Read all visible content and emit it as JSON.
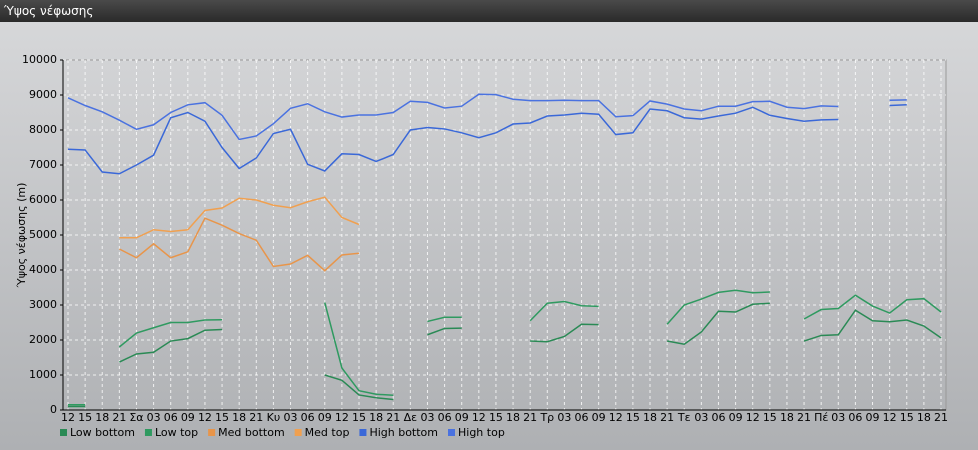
{
  "chart_data": {
    "type": "line",
    "title": "Ύψος νέφωσης",
    "ylabel": "Ύψος νέφωσης (m)",
    "categories": [
      "12",
      "15",
      "18",
      "21",
      "Σα",
      "03",
      "06",
      "09",
      "12",
      "15",
      "18",
      "21",
      "Κυ",
      "03",
      "06",
      "09",
      "12",
      "15",
      "18",
      "21",
      "Δε",
      "03",
      "06",
      "09",
      "12",
      "15",
      "18",
      "21",
      "Τρ",
      "03",
      "06",
      "09",
      "12",
      "15",
      "18",
      "21",
      "Τε",
      "03",
      "06",
      "09",
      "12",
      "15",
      "18",
      "21",
      "Πέ",
      "03",
      "06",
      "09",
      "12",
      "15",
      "18",
      "21"
    ],
    "ylim": [
      0,
      10000
    ],
    "yticks": [
      0,
      1000,
      2000,
      3000,
      4000,
      5000,
      6000,
      7000,
      8000,
      9000,
      10000
    ],
    "grid": true,
    "series": [
      {
        "name": "Low bottom",
        "color": "#2a8a55",
        "values": [
          100,
          100,
          null,
          1370,
          1600,
          1650,
          1970,
          2040,
          2280,
          2300,
          null,
          null,
          null,
          null,
          null,
          1000,
          850,
          430,
          350,
          300,
          null,
          2150,
          2330,
          2340,
          null,
          null,
          null,
          1970,
          1950,
          2100,
          2450,
          2440,
          null,
          null,
          null,
          1970,
          1880,
          2230,
          2820,
          2800,
          3020,
          3050,
          null,
          1970,
          2130,
          2150,
          2850,
          2550,
          2520,
          2570,
          2400,
          2060
        ]
      },
      {
        "name": "Low top",
        "color": "#2f9a60",
        "values": [
          150,
          150,
          null,
          1800,
          2200,
          2350,
          2500,
          2500,
          2570,
          2580,
          null,
          null,
          null,
          null,
          null,
          3070,
          1200,
          550,
          450,
          420,
          null,
          2530,
          2650,
          2650,
          null,
          null,
          null,
          2550,
          3050,
          3100,
          2980,
          2960,
          null,
          null,
          null,
          2450,
          3000,
          3170,
          3360,
          3420,
          3350,
          3370,
          null,
          2600,
          2870,
          2900,
          3280,
          2970,
          2770,
          3150,
          3180,
          2800
        ]
      },
      {
        "name": "Med bottom",
        "color": "#e8954a",
        "values": [
          null,
          null,
          null,
          4600,
          4350,
          4750,
          4350,
          4520,
          5480,
          5280,
          5040,
          4850,
          4100,
          4170,
          4420,
          3980,
          4430,
          4480,
          null,
          null,
          null,
          null,
          null,
          null,
          null,
          null,
          null,
          null,
          null,
          null,
          null,
          null,
          null,
          null,
          null,
          null,
          null,
          null,
          null,
          null,
          null,
          null,
          null,
          null,
          null,
          null,
          null,
          null,
          null,
          null,
          null,
          null
        ]
      },
      {
        "name": "Med top",
        "color": "#f0a050",
        "values": [
          null,
          null,
          null,
          4920,
          4920,
          5150,
          5100,
          5150,
          5700,
          5770,
          6050,
          6000,
          5850,
          5780,
          5950,
          6080,
          5500,
          5300,
          null,
          null,
          null,
          null,
          null,
          null,
          null,
          null,
          null,
          null,
          null,
          null,
          null,
          null,
          null,
          null,
          null,
          null,
          null,
          null,
          null,
          null,
          null,
          null,
          null,
          null,
          null,
          null,
          null,
          null,
          null,
          null,
          null,
          null
        ]
      },
      {
        "name": "High bottom",
        "color": "#3a68d8",
        "values": [
          7450,
          7430,
          6800,
          6750,
          7000,
          7280,
          8350,
          8500,
          8250,
          7500,
          6900,
          7200,
          7900,
          8020,
          7020,
          6830,
          7320,
          7300,
          7100,
          7300,
          8000,
          8070,
          8030,
          7920,
          7780,
          7920,
          8170,
          8200,
          8400,
          8430,
          8480,
          8450,
          7870,
          7920,
          8600,
          8550,
          8350,
          8310,
          8400,
          8480,
          8650,
          8420,
          8330,
          8250,
          8290,
          8300,
          null,
          null,
          8700,
          8720,
          null,
          null
        ]
      },
      {
        "name": "High top",
        "color": "#4a72e0",
        "values": [
          8920,
          8700,
          8520,
          8280,
          8020,
          8150,
          8500,
          8720,
          8780,
          8420,
          7730,
          7830,
          8180,
          8620,
          8750,
          8520,
          8370,
          8430,
          8430,
          8500,
          8820,
          8790,
          8630,
          8680,
          9020,
          9010,
          8880,
          8840,
          8840,
          8850,
          8840,
          8840,
          8380,
          8410,
          8830,
          8740,
          8600,
          8550,
          8680,
          8680,
          8810,
          8820,
          8650,
          8610,
          8690,
          8670,
          null,
          null,
          8850,
          8860,
          null,
          null
        ]
      }
    ]
  }
}
